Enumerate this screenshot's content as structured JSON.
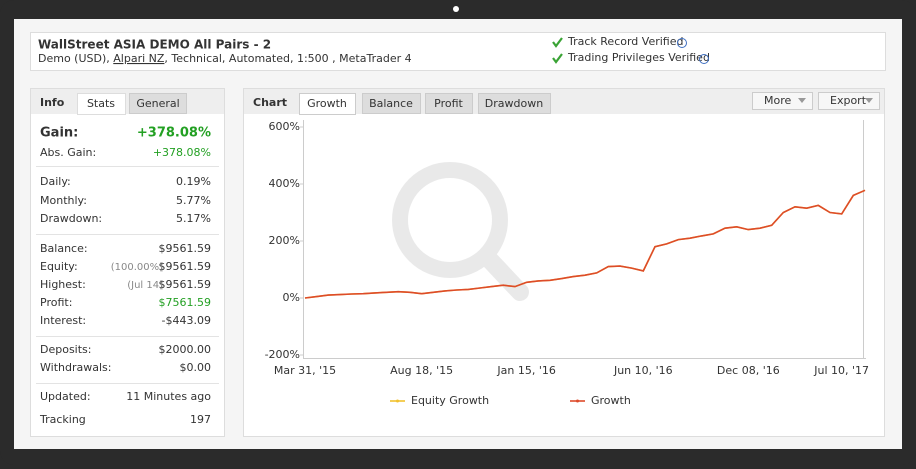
{
  "header": {
    "title": "WallStreet ASIA DEMO All Pairs - 2",
    "details_prefix": "Demo (USD),",
    "broker": "Alpari NZ",
    "details_suffix": ", Technical, Automated, 1:500 , MetaTrader 4",
    "verified": [
      "Track Record Verified",
      "Trading Privileges Verified"
    ]
  },
  "info": {
    "tabs": [
      "Info",
      "Stats",
      "General"
    ],
    "groups": [
      [
        {
          "label": "Gain:",
          "value": "+378.08%"
        },
        {
          "label": "Abs. Gain:",
          "value": "+378.08%"
        }
      ],
      [
        {
          "label": "Daily:",
          "value": "0.19%"
        },
        {
          "label": "Monthly:",
          "value": "5.77%"
        },
        {
          "label": "Drawdown:",
          "value": "5.17%"
        }
      ],
      [
        {
          "label": "Balance:",
          "value": "$9561.59"
        },
        {
          "label": "Equity:",
          "note": "(100.00%)",
          "value": "$9561.59"
        },
        {
          "label": "Highest:",
          "note": "(Jul 14)",
          "value": "$9561.59"
        },
        {
          "label": "Profit:",
          "value": "$7561.59"
        },
        {
          "label": "Interest:",
          "value": "-$443.09"
        }
      ],
      [
        {
          "label": "Deposits:",
          "value": "$2000.00"
        },
        {
          "label": "Withdrawals:",
          "value": "$0.00"
        }
      ],
      [
        {
          "label": "Updated:",
          "value": "11 Minutes ago"
        },
        {
          "label": "Tracking",
          "value": "197"
        }
      ]
    ]
  },
  "chart_panel": {
    "title": "Chart",
    "tabs": [
      "Growth",
      "Balance",
      "Profit",
      "Drawdown"
    ],
    "buttons": [
      "More",
      "Export"
    ]
  },
  "chart_data": {
    "type": "line",
    "categories": [
      "Mar 31, '15",
      null,
      null,
      null,
      null,
      null,
      null,
      null,
      null,
      null,
      "Aug 18, '15",
      null,
      null,
      null,
      null,
      null,
      null,
      null,
      null,
      "Jan 15, '16",
      null,
      null,
      null,
      null,
      null,
      null,
      null,
      null,
      null,
      "Jun 10, '16",
      null,
      null,
      null,
      null,
      null,
      null,
      null,
      null,
      "Dec 08, '16",
      null,
      null,
      null,
      null,
      null,
      null,
      null,
      "Jul 10, '17",
      null,
      null
    ],
    "series": [
      {
        "name": "Equity Growth",
        "color": "#f2c12e",
        "values": [
          0,
          5,
          10,
          12,
          14,
          15,
          18,
          20,
          22,
          20,
          15,
          20,
          25,
          28,
          30,
          35,
          40,
          45,
          40,
          55,
          60,
          62,
          68,
          75,
          80,
          88,
          110,
          112,
          105,
          95,
          180,
          190,
          205,
          210,
          218,
          225,
          245,
          250,
          240,
          245,
          255,
          300,
          320,
          315,
          325,
          300,
          295,
          360,
          378
        ]
      },
      {
        "name": "Growth",
        "color": "#dd4b2a",
        "values": [
          0,
          5,
          10,
          12,
          14,
          15,
          18,
          20,
          22,
          20,
          15,
          20,
          25,
          28,
          30,
          35,
          40,
          45,
          40,
          55,
          60,
          62,
          68,
          75,
          80,
          88,
          110,
          112,
          105,
          95,
          180,
          190,
          205,
          210,
          218,
          225,
          245,
          250,
          240,
          245,
          255,
          300,
          320,
          315,
          325,
          300,
          295,
          360,
          378
        ]
      }
    ],
    "ylim": [
      -200,
      600
    ],
    "yticks": [
      {
        "value": -200,
        "label": "-200%"
      },
      {
        "value": 0,
        "label": "0%"
      },
      {
        "value": 200,
        "label": "200%"
      },
      {
        "value": 400,
        "label": "400%"
      },
      {
        "value": 600,
        "label": "600%"
      }
    ],
    "grid": false
  }
}
